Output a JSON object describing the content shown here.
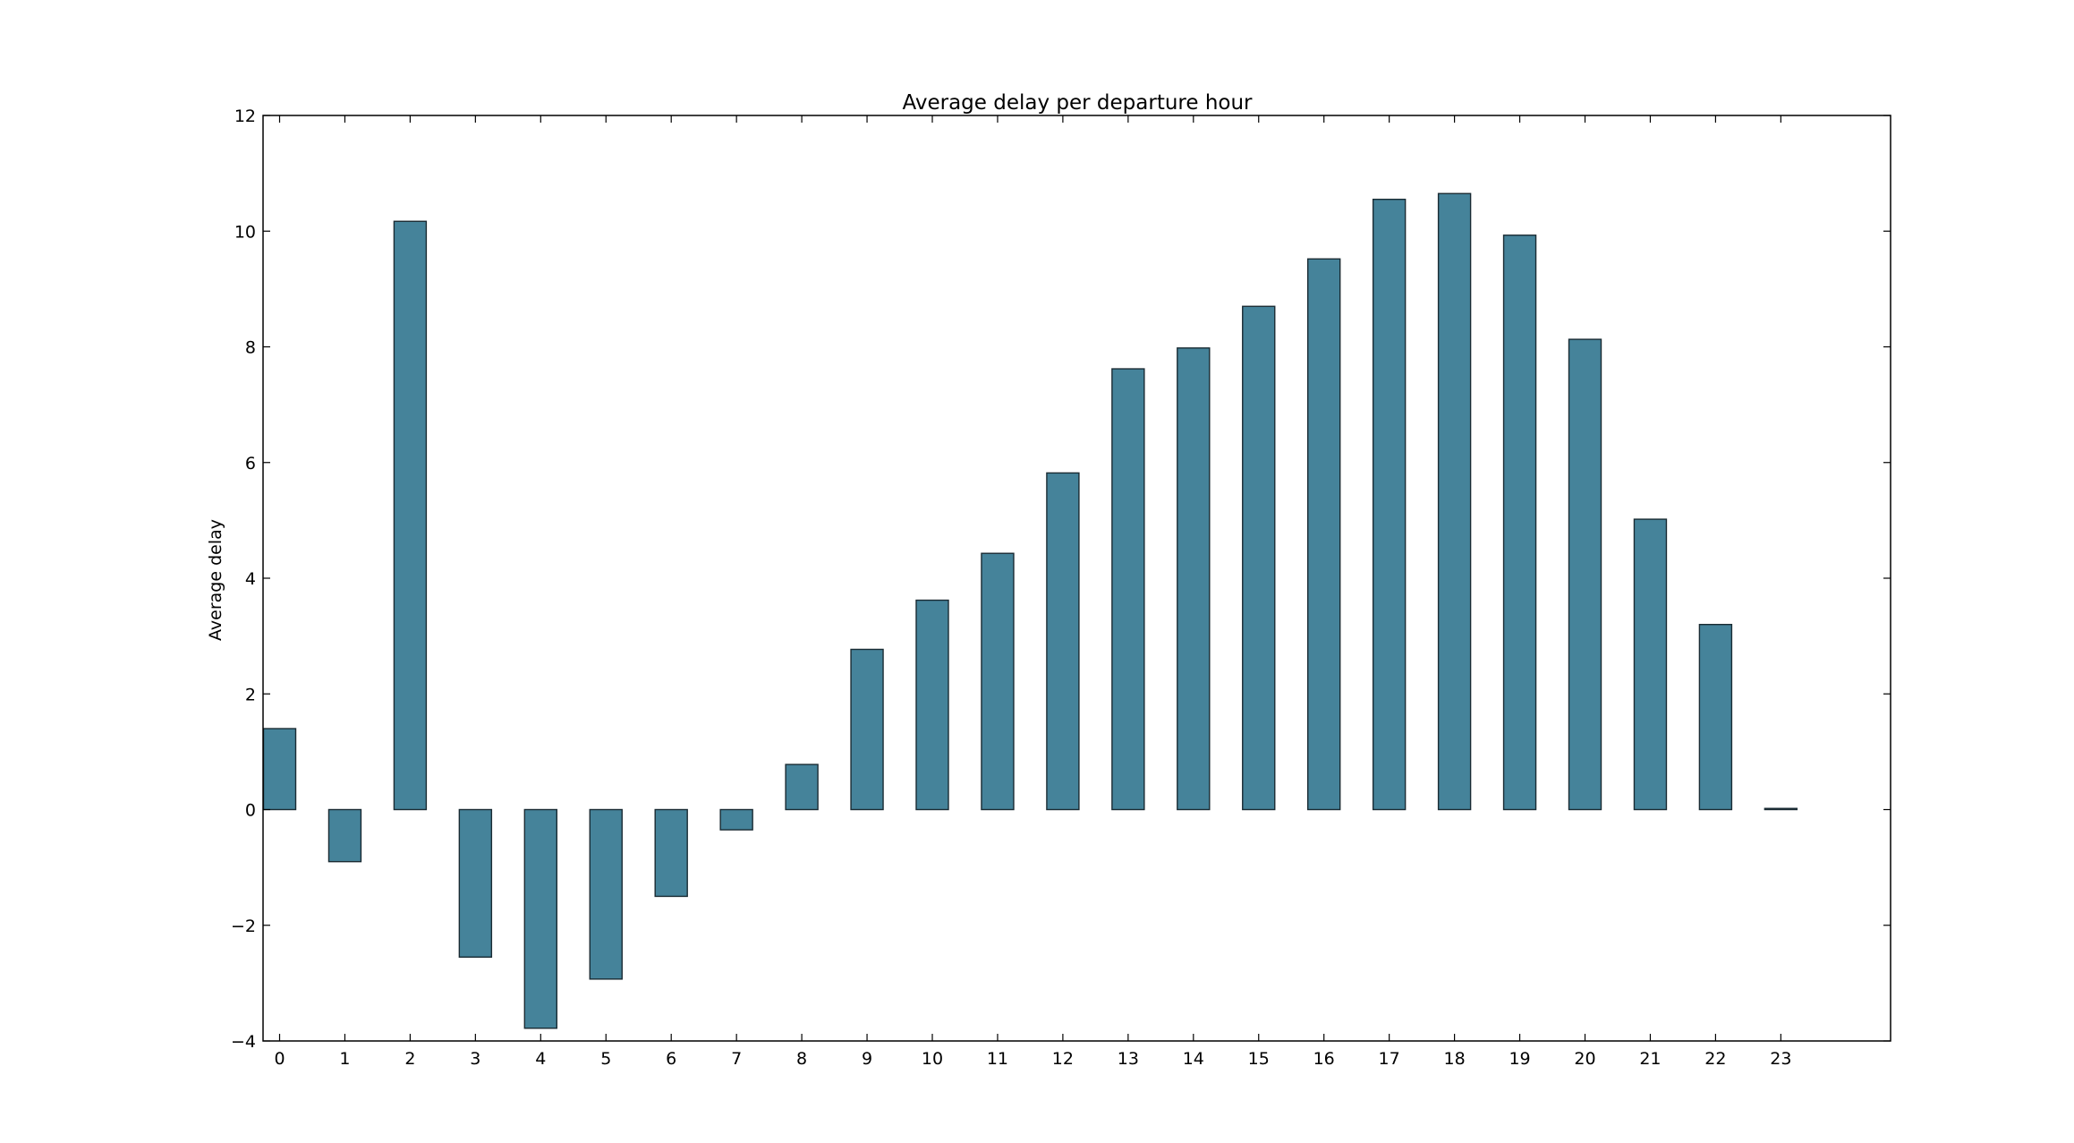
{
  "chart_data": {
    "type": "bar",
    "title": "Average delay per departure hour",
    "xlabel": "",
    "ylabel": "Average delay",
    "categories": [
      "0",
      "1",
      "2",
      "3",
      "4",
      "5",
      "6",
      "7",
      "8",
      "9",
      "10",
      "11",
      "12",
      "13",
      "14",
      "15",
      "16",
      "17",
      "18",
      "19",
      "20",
      "21",
      "22",
      "23"
    ],
    "values": [
      1.4,
      -0.9,
      10.17,
      -2.55,
      -3.78,
      -2.93,
      -1.5,
      -0.35,
      0.78,
      2.77,
      3.62,
      4.43,
      5.82,
      7.62,
      7.98,
      8.7,
      9.52,
      10.55,
      10.65,
      9.93,
      8.13,
      5.02,
      3.2,
      0.02
    ],
    "ylim": [
      -4,
      12
    ],
    "yticks": [
      "−4",
      "−2",
      "0",
      "2",
      "4",
      "6",
      "8",
      "10",
      "12"
    ],
    "bar_color": "#45839a",
    "edge_color": "#1a2b33",
    "grid": false,
    "legend": "none"
  }
}
